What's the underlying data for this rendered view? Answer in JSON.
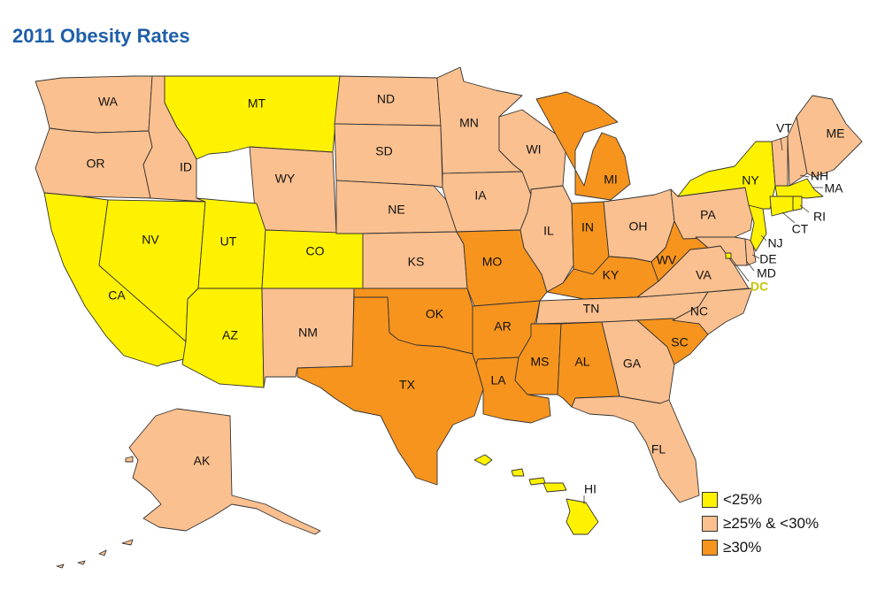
{
  "title": "2011 Obesity Rates",
  "colors": {
    "low": "#fff200",
    "mid": "#fbc08f",
    "high": "#f7941d"
  },
  "legend": [
    {
      "key": "low",
      "label": "<25%"
    },
    {
      "key": "mid",
      "label": "≥25% & <30%"
    },
    {
      "key": "high",
      "label": "≥30%"
    }
  ],
  "states": [
    {
      "abbr": "WA",
      "category": "mid"
    },
    {
      "abbr": "OR",
      "category": "mid"
    },
    {
      "abbr": "CA",
      "category": "low"
    },
    {
      "abbr": "NV",
      "category": "low"
    },
    {
      "abbr": "ID",
      "category": "mid"
    },
    {
      "abbr": "MT",
      "category": "low"
    },
    {
      "abbr": "WY",
      "category": "mid"
    },
    {
      "abbr": "UT",
      "category": "low"
    },
    {
      "abbr": "CO",
      "category": "low"
    },
    {
      "abbr": "AZ",
      "category": "low"
    },
    {
      "abbr": "NM",
      "category": "mid"
    },
    {
      "abbr": "ND",
      "category": "mid"
    },
    {
      "abbr": "SD",
      "category": "mid"
    },
    {
      "abbr": "NE",
      "category": "mid"
    },
    {
      "abbr": "KS",
      "category": "mid"
    },
    {
      "abbr": "OK",
      "category": "high"
    },
    {
      "abbr": "TX",
      "category": "high"
    },
    {
      "abbr": "MN",
      "category": "mid"
    },
    {
      "abbr": "IA",
      "category": "mid"
    },
    {
      "abbr": "MO",
      "category": "high"
    },
    {
      "abbr": "AR",
      "category": "high"
    },
    {
      "abbr": "LA",
      "category": "high"
    },
    {
      "abbr": "WI",
      "category": "mid"
    },
    {
      "abbr": "IL",
      "category": "mid"
    },
    {
      "abbr": "MI",
      "category": "high"
    },
    {
      "abbr": "IN",
      "category": "high"
    },
    {
      "abbr": "OH",
      "category": "mid"
    },
    {
      "abbr": "KY",
      "category": "high"
    },
    {
      "abbr": "TN",
      "category": "mid"
    },
    {
      "abbr": "MS",
      "category": "high"
    },
    {
      "abbr": "AL",
      "category": "high"
    },
    {
      "abbr": "GA",
      "category": "mid"
    },
    {
      "abbr": "FL",
      "category": "mid"
    },
    {
      "abbr": "SC",
      "category": "high"
    },
    {
      "abbr": "NC",
      "category": "mid"
    },
    {
      "abbr": "VA",
      "category": "mid"
    },
    {
      "abbr": "WV",
      "category": "high"
    },
    {
      "abbr": "PA",
      "category": "mid"
    },
    {
      "abbr": "NY",
      "category": "low"
    },
    {
      "abbr": "VT",
      "category": "mid"
    },
    {
      "abbr": "NH",
      "category": "mid"
    },
    {
      "abbr": "ME",
      "category": "mid"
    },
    {
      "abbr": "MA",
      "category": "low"
    },
    {
      "abbr": "RI",
      "category": "low"
    },
    {
      "abbr": "CT",
      "category": "low"
    },
    {
      "abbr": "NJ",
      "category": "low"
    },
    {
      "abbr": "DE",
      "category": "mid"
    },
    {
      "abbr": "MD",
      "category": "mid"
    },
    {
      "abbr": "DC",
      "category": "low"
    },
    {
      "abbr": "AK",
      "category": "mid"
    },
    {
      "abbr": "HI",
      "category": "low"
    }
  ]
}
